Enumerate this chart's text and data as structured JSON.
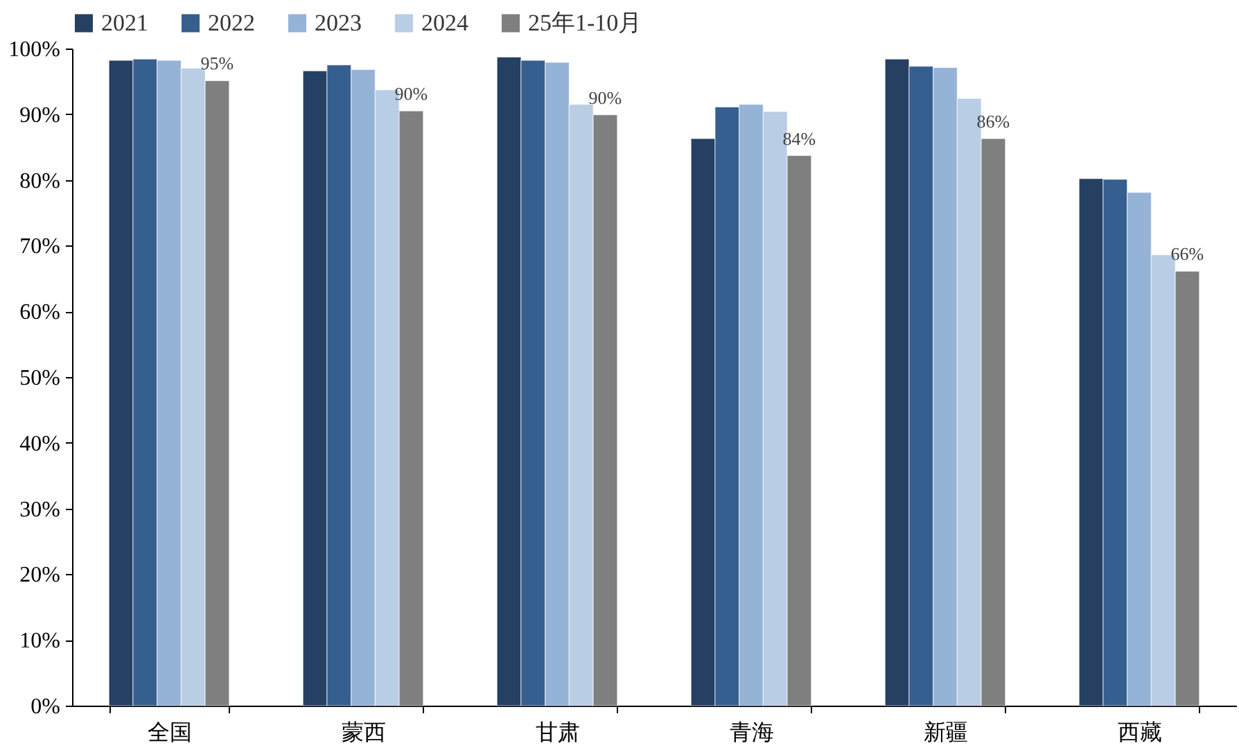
{
  "chart_data": {
    "type": "bar",
    "categories": [
      "全国",
      "蒙西",
      "甘肃",
      "青海",
      "新疆",
      "西藏"
    ],
    "series": [
      {
        "name": "2021",
        "color": "#264064",
        "values": [
          98.2,
          96.6,
          98.7,
          86.3,
          98.4,
          80.2
        ]
      },
      {
        "name": "2022",
        "color": "#355f8f",
        "values": [
          98.4,
          97.5,
          98.2,
          91.1,
          97.3,
          80.1
        ]
      },
      {
        "name": "2023",
        "color": "#95b3d7",
        "values": [
          98.2,
          96.8,
          97.9,
          91.5,
          97.1,
          78.1
        ]
      },
      {
        "name": "2024",
        "color": "#b9cde5",
        "values": [
          97.0,
          93.7,
          91.5,
          90.4,
          92.4,
          68.6
        ]
      },
      {
        "name": "25年1-10月",
        "color": "#7f7f7f",
        "values": [
          95.1,
          90.5,
          89.9,
          83.7,
          86.3,
          66.1
        ],
        "value_labels": [
          "95%",
          "90%",
          "90%",
          "84%",
          "86%",
          "66%"
        ]
      }
    ],
    "ylim": [
      0,
      100
    ],
    "yticks": [
      {
        "value": 0,
        "label": "0%"
      },
      {
        "value": 10,
        "label": "10%"
      },
      {
        "value": 20,
        "label": "20%"
      },
      {
        "value": 30,
        "label": "30%"
      },
      {
        "value": 40,
        "label": "40%"
      },
      {
        "value": 50,
        "label": "50%"
      },
      {
        "value": 60,
        "label": "60%"
      },
      {
        "value": 70,
        "label": "70%"
      },
      {
        "value": 80,
        "label": "80%"
      },
      {
        "value": 90,
        "label": "90%"
      },
      {
        "value": 100,
        "label": "100%"
      }
    ],
    "grid": false,
    "legend": "top"
  }
}
